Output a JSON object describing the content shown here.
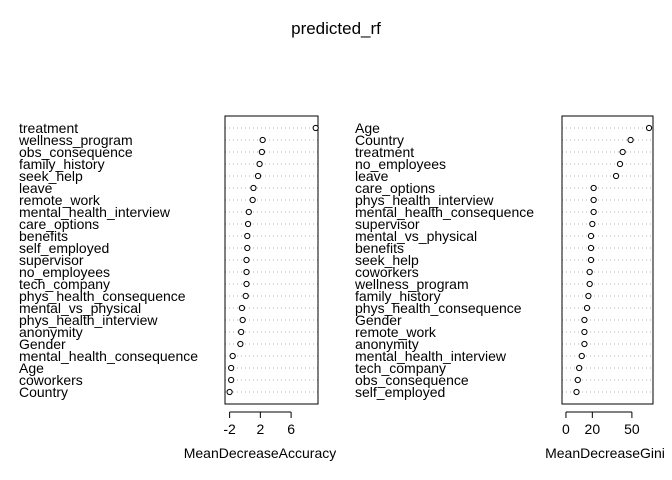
{
  "title": "predicted_rf",
  "chart_data": [
    {
      "type": "scatter",
      "subtype": "dotchart",
      "xlabel": "MeanDecreaseAccuracy",
      "ylabel": "",
      "xlim": [
        -2.6,
        9.5
      ],
      "xticks": [
        -2,
        2,
        6
      ],
      "xtick_labels": [
        "-2",
        "2",
        "6"
      ],
      "grid": "dotted horizontal",
      "categories": [
        "treatment",
        "wellness_program",
        "obs_consequence",
        "family_history",
        "seek_help",
        "leave",
        "remote_work",
        "mental_health_interview",
        "care_options",
        "benefits",
        "self_employed",
        "supervisor",
        "no_employees",
        "tech_company",
        "phys_health_consequence",
        "mental_vs_physical",
        "phys_health_interview",
        "anonymity",
        "Gender",
        "mental_health_consequence",
        "Age",
        "coworkers",
        "Country"
      ],
      "values": [
        9.2,
        2.3,
        2.2,
        1.9,
        1.7,
        1.1,
        1.0,
        0.5,
        0.4,
        0.3,
        0.3,
        0.2,
        0.2,
        0.2,
        0.1,
        -0.4,
        -0.3,
        -0.5,
        -0.6,
        -1.6,
        -1.8,
        -1.8,
        -2.0
      ]
    },
    {
      "type": "scatter",
      "subtype": "dotchart",
      "xlabel": "MeanDecreaseGini",
      "ylabel": "",
      "xlim": [
        -3,
        66
      ],
      "xticks": [
        0,
        20,
        50
      ],
      "xtick_labels": [
        "0",
        "20",
        "50"
      ],
      "grid": "dotted horizontal",
      "categories": [
        "Age",
        "Country",
        "treatment",
        "no_employees",
        "leave",
        "care_options",
        "phys_health_interview",
        "mental_health_consequence",
        "supervisor",
        "mental_vs_physical",
        "benefits",
        "seek_help",
        "coworkers",
        "wellness_program",
        "family_history",
        "phys_health_consequence",
        "Gender",
        "remote_work",
        "anonymity",
        "mental_health_interview",
        "tech_company",
        "obs_consequence",
        "self_employed"
      ],
      "values": [
        63,
        49,
        43,
        41,
        38,
        21,
        21,
        21,
        20,
        19,
        19,
        19,
        18,
        18,
        17,
        16,
        14,
        14,
        14,
        12,
        10,
        9,
        8
      ]
    }
  ]
}
